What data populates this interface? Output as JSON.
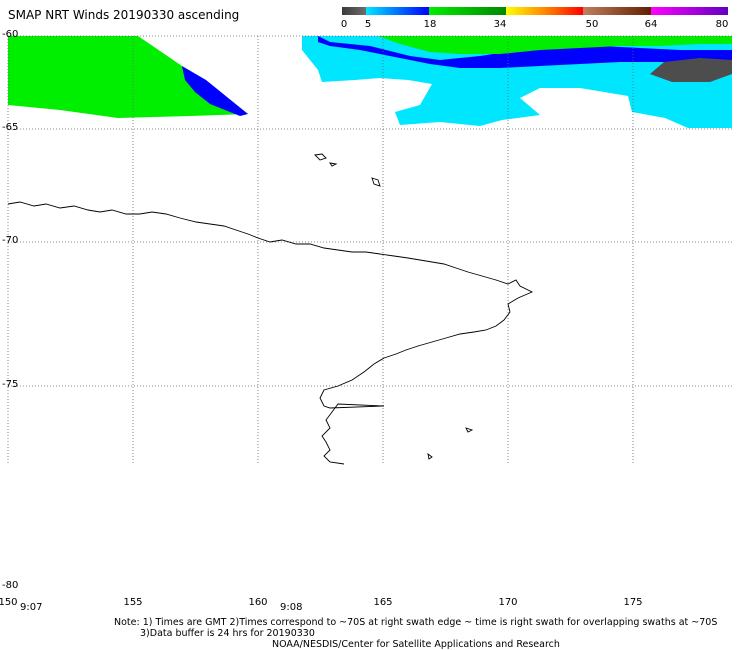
{
  "title": "SMAP NRT Winds 20190330 ascending",
  "colorbar": {
    "ticks": [
      "0",
      "5",
      "18",
      "34",
      "50",
      "64",
      "80"
    ],
    "segments": [
      {
        "from": 0,
        "to": 5,
        "colors": [
          "#3a3a3a",
          "#6e6e6e"
        ]
      },
      {
        "from": 5,
        "to": 18,
        "colors": [
          "#00e6ff",
          "#0000ff"
        ]
      },
      {
        "from": 18,
        "to": 34,
        "colors": [
          "#00ee00",
          "#008800"
        ]
      },
      {
        "from": 34,
        "to": 50,
        "colors": [
          "#ffff00",
          "#ff8800",
          "#ff0000"
        ]
      },
      {
        "from": 50,
        "to": 64,
        "colors": [
          "#c08060",
          "#602000"
        ]
      },
      {
        "from": 64,
        "to": 80,
        "colors": [
          "#ff00ff",
          "#6000c0"
        ]
      }
    ]
  },
  "axes": {
    "lat_labels": [
      "-60",
      "-65",
      "-70",
      "-75",
      "-80"
    ],
    "lon_labels": [
      "150",
      "155",
      "160",
      "165",
      "170",
      "175"
    ]
  },
  "times": [
    "9:07",
    "9:08"
  ],
  "notes": {
    "line1": "Note: 1) Times are GMT 2)Times correspond to ~70S at right swath edge ~ time is right swath for overlapping swaths at ~70S",
    "line2": "3)Data buffer is 24 hrs for 20190330",
    "line3": "NOAA/NESDIS/Center for Satellite Applications and Research"
  },
  "colors": {
    "calm": "#4d4d4d",
    "light": "#00e6ff",
    "moderate": "#0000ff",
    "strong": "#00ee00",
    "coast": "#000000"
  }
}
